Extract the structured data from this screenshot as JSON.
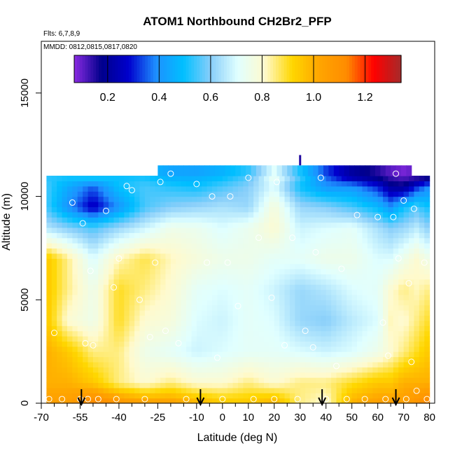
{
  "chart_data": {
    "type": "heatmap",
    "title": "ATOM1 Northbound CH2Br2_PFP",
    "flights_note": "Flts: 6,7,8,9",
    "dates_note": "MMDD: 0812,0815,0817,0820",
    "xlabel": "Latitude (deg N)",
    "ylabel": "Altitude (m)",
    "xlim": [
      -70,
      82
    ],
    "ylim": [
      0,
      17500
    ],
    "x_ticks": [
      -70,
      -55,
      -40,
      -25,
      -10,
      0,
      10,
      20,
      30,
      40,
      50,
      60,
      70,
      80
    ],
    "x_minor_ticks": [
      -65,
      -60,
      -50,
      -45,
      -35,
      -30,
      -20,
      -15,
      -5,
      5,
      15,
      25,
      35,
      45,
      55,
      65,
      75
    ],
    "y_ticks": [
      0,
      5000,
      10000,
      15000
    ],
    "colorbar": {
      "range": [
        0.07,
        1.34
      ],
      "ticks": [
        0.2,
        0.4,
        0.6,
        0.8,
        1.0,
        1.2
      ],
      "tick_labels": [
        "0.2",
        "0.4",
        "0.6",
        "0.8",
        "1.0",
        "1.2"
      ],
      "colors": [
        "#8a2be2",
        "#00008b",
        "#0000cd",
        "#1e90ff",
        "#00bfff",
        "#87cefa",
        "#e0ffff",
        "#fffacd",
        "#ffd700",
        "#ffa500",
        "#ff8c00",
        "#ff0000",
        "#a52a2a"
      ]
    },
    "field_extent": {
      "lat": [
        -68,
        80
      ],
      "alt_max": 11000
    },
    "grid": {
      "lat_nodes": [
        -68,
        -60,
        -50,
        -40,
        -30,
        -20,
        -10,
        0,
        10,
        20,
        30,
        40,
        50,
        60,
        65,
        70,
        75,
        80
      ],
      "alt_nodes": [
        0,
        1000,
        2500,
        4000,
        5500,
        7000,
        8500,
        9500,
        10500,
        11000
      ],
      "values": [
        [
          1.05,
          1.05,
          1.15,
          1.1,
          1.05,
          1.05,
          1.0,
          0.95,
          0.95,
          1.0,
          0.85,
          0.8,
          1.0,
          1.05,
          1.05,
          1.05,
          1.1,
          1.15
        ],
        [
          1.0,
          1.0,
          0.95,
          0.85,
          0.8,
          0.85,
          0.8,
          0.8,
          0.85,
          0.8,
          0.85,
          0.85,
          0.9,
          0.95,
          0.95,
          1.0,
          1.0,
          1.0
        ],
        [
          1.0,
          0.95,
          0.85,
          0.85,
          0.75,
          0.72,
          0.68,
          0.7,
          0.72,
          0.72,
          0.7,
          0.68,
          0.7,
          0.75,
          0.8,
          0.85,
          0.9,
          0.95
        ],
        [
          0.95,
          0.8,
          0.75,
          0.9,
          0.8,
          0.78,
          0.7,
          0.68,
          0.72,
          0.7,
          0.62,
          0.6,
          0.66,
          0.7,
          0.82,
          0.8,
          0.85,
          0.9
        ],
        [
          0.95,
          0.85,
          0.75,
          0.9,
          0.85,
          0.8,
          0.72,
          0.7,
          0.72,
          0.68,
          0.62,
          0.65,
          0.7,
          0.72,
          0.8,
          0.85,
          0.82,
          0.85
        ],
        [
          0.95,
          0.85,
          0.7,
          0.82,
          0.88,
          0.82,
          0.78,
          0.75,
          0.75,
          0.72,
          0.72,
          0.75,
          0.75,
          0.7,
          0.7,
          0.75,
          0.8,
          0.75
        ],
        [
          0.65,
          0.6,
          0.55,
          0.62,
          0.68,
          0.75,
          0.74,
          0.7,
          0.74,
          0.8,
          0.68,
          0.7,
          0.72,
          0.64,
          0.6,
          0.62,
          0.66,
          0.6
        ],
        [
          0.55,
          0.4,
          0.25,
          0.4,
          0.55,
          0.6,
          0.62,
          0.64,
          0.62,
          0.78,
          0.62,
          0.6,
          0.55,
          0.48,
          0.4,
          0.5,
          0.55,
          0.5
        ],
        [
          0.55,
          0.45,
          0.35,
          0.5,
          0.55,
          0.52,
          0.5,
          0.55,
          0.6,
          0.7,
          0.5,
          0.4,
          0.4,
          0.3,
          0.2,
          0.18,
          0.3,
          0.4
        ],
        [
          0.52,
          0.52,
          0.55,
          0.5,
          0.5,
          0.45,
          0.45,
          0.48,
          0.55,
          0.75,
          0.55,
          0.35,
          0.2,
          0.15,
          0.12,
          0.1,
          0.1,
          0.1
        ]
      ]
    },
    "top_strip": {
      "lat": [
        -25,
        72
      ],
      "alt": [
        11000,
        11500
      ]
    },
    "blue_marker": {
      "lat": 30,
      "alt": [
        11500,
        12000
      ]
    },
    "sample_points": [
      [
        -67,
        200
      ],
      [
        -65,
        3400
      ],
      [
        -62,
        200
      ],
      [
        -58,
        9700
      ],
      [
        -55,
        200
      ],
      [
        -54,
        8700
      ],
      [
        -53,
        2900
      ],
      [
        -52,
        200
      ],
      [
        -51,
        6400
      ],
      [
        -50,
        2800
      ],
      [
        -48,
        200
      ],
      [
        -45,
        9300
      ],
      [
        -42,
        5600
      ],
      [
        -41,
        200
      ],
      [
        -40,
        7000
      ],
      [
        -37,
        10500
      ],
      [
        -35,
        10300
      ],
      [
        -32,
        5000
      ],
      [
        -30,
        200
      ],
      [
        -28,
        3200
      ],
      [
        -26,
        6800
      ],
      [
        -24,
        10700
      ],
      [
        -22,
        3500
      ],
      [
        -20,
        11100
      ],
      [
        -17,
        2900
      ],
      [
        -14,
        200
      ],
      [
        -10,
        10600
      ],
      [
        -6,
        6800
      ],
      [
        -4,
        10000
      ],
      [
        -2,
        2200
      ],
      [
        0,
        200
      ],
      [
        2,
        6800
      ],
      [
        3,
        10000
      ],
      [
        6,
        4700
      ],
      [
        10,
        10900
      ],
      [
        12,
        200
      ],
      [
        14,
        8000
      ],
      [
        19,
        5100
      ],
      [
        20,
        200
      ],
      [
        21,
        10700
      ],
      [
        24,
        2800
      ],
      [
        27,
        8000
      ],
      [
        29,
        200
      ],
      [
        32,
        3500
      ],
      [
        35,
        2700
      ],
      [
        36,
        7300
      ],
      [
        38,
        10900
      ],
      [
        40,
        200
      ],
      [
        44,
        1800
      ],
      [
        46,
        6500
      ],
      [
        48,
        200
      ],
      [
        52,
        9100
      ],
      [
        55,
        200
      ],
      [
        60,
        9000
      ],
      [
        62,
        3900
      ],
      [
        63,
        200
      ],
      [
        64,
        2300
      ],
      [
        66,
        9000
      ],
      [
        67,
        11100
      ],
      [
        68,
        7000
      ],
      [
        70,
        9800
      ],
      [
        71,
        200
      ],
      [
        72,
        5800
      ],
      [
        73,
        2000
      ],
      [
        74,
        9400
      ],
      [
        75,
        600
      ],
      [
        78,
        6800
      ],
      [
        79,
        200
      ]
    ],
    "arrows_lat": [
      -54.5,
      -8.5,
      38.5,
      67
    ]
  }
}
